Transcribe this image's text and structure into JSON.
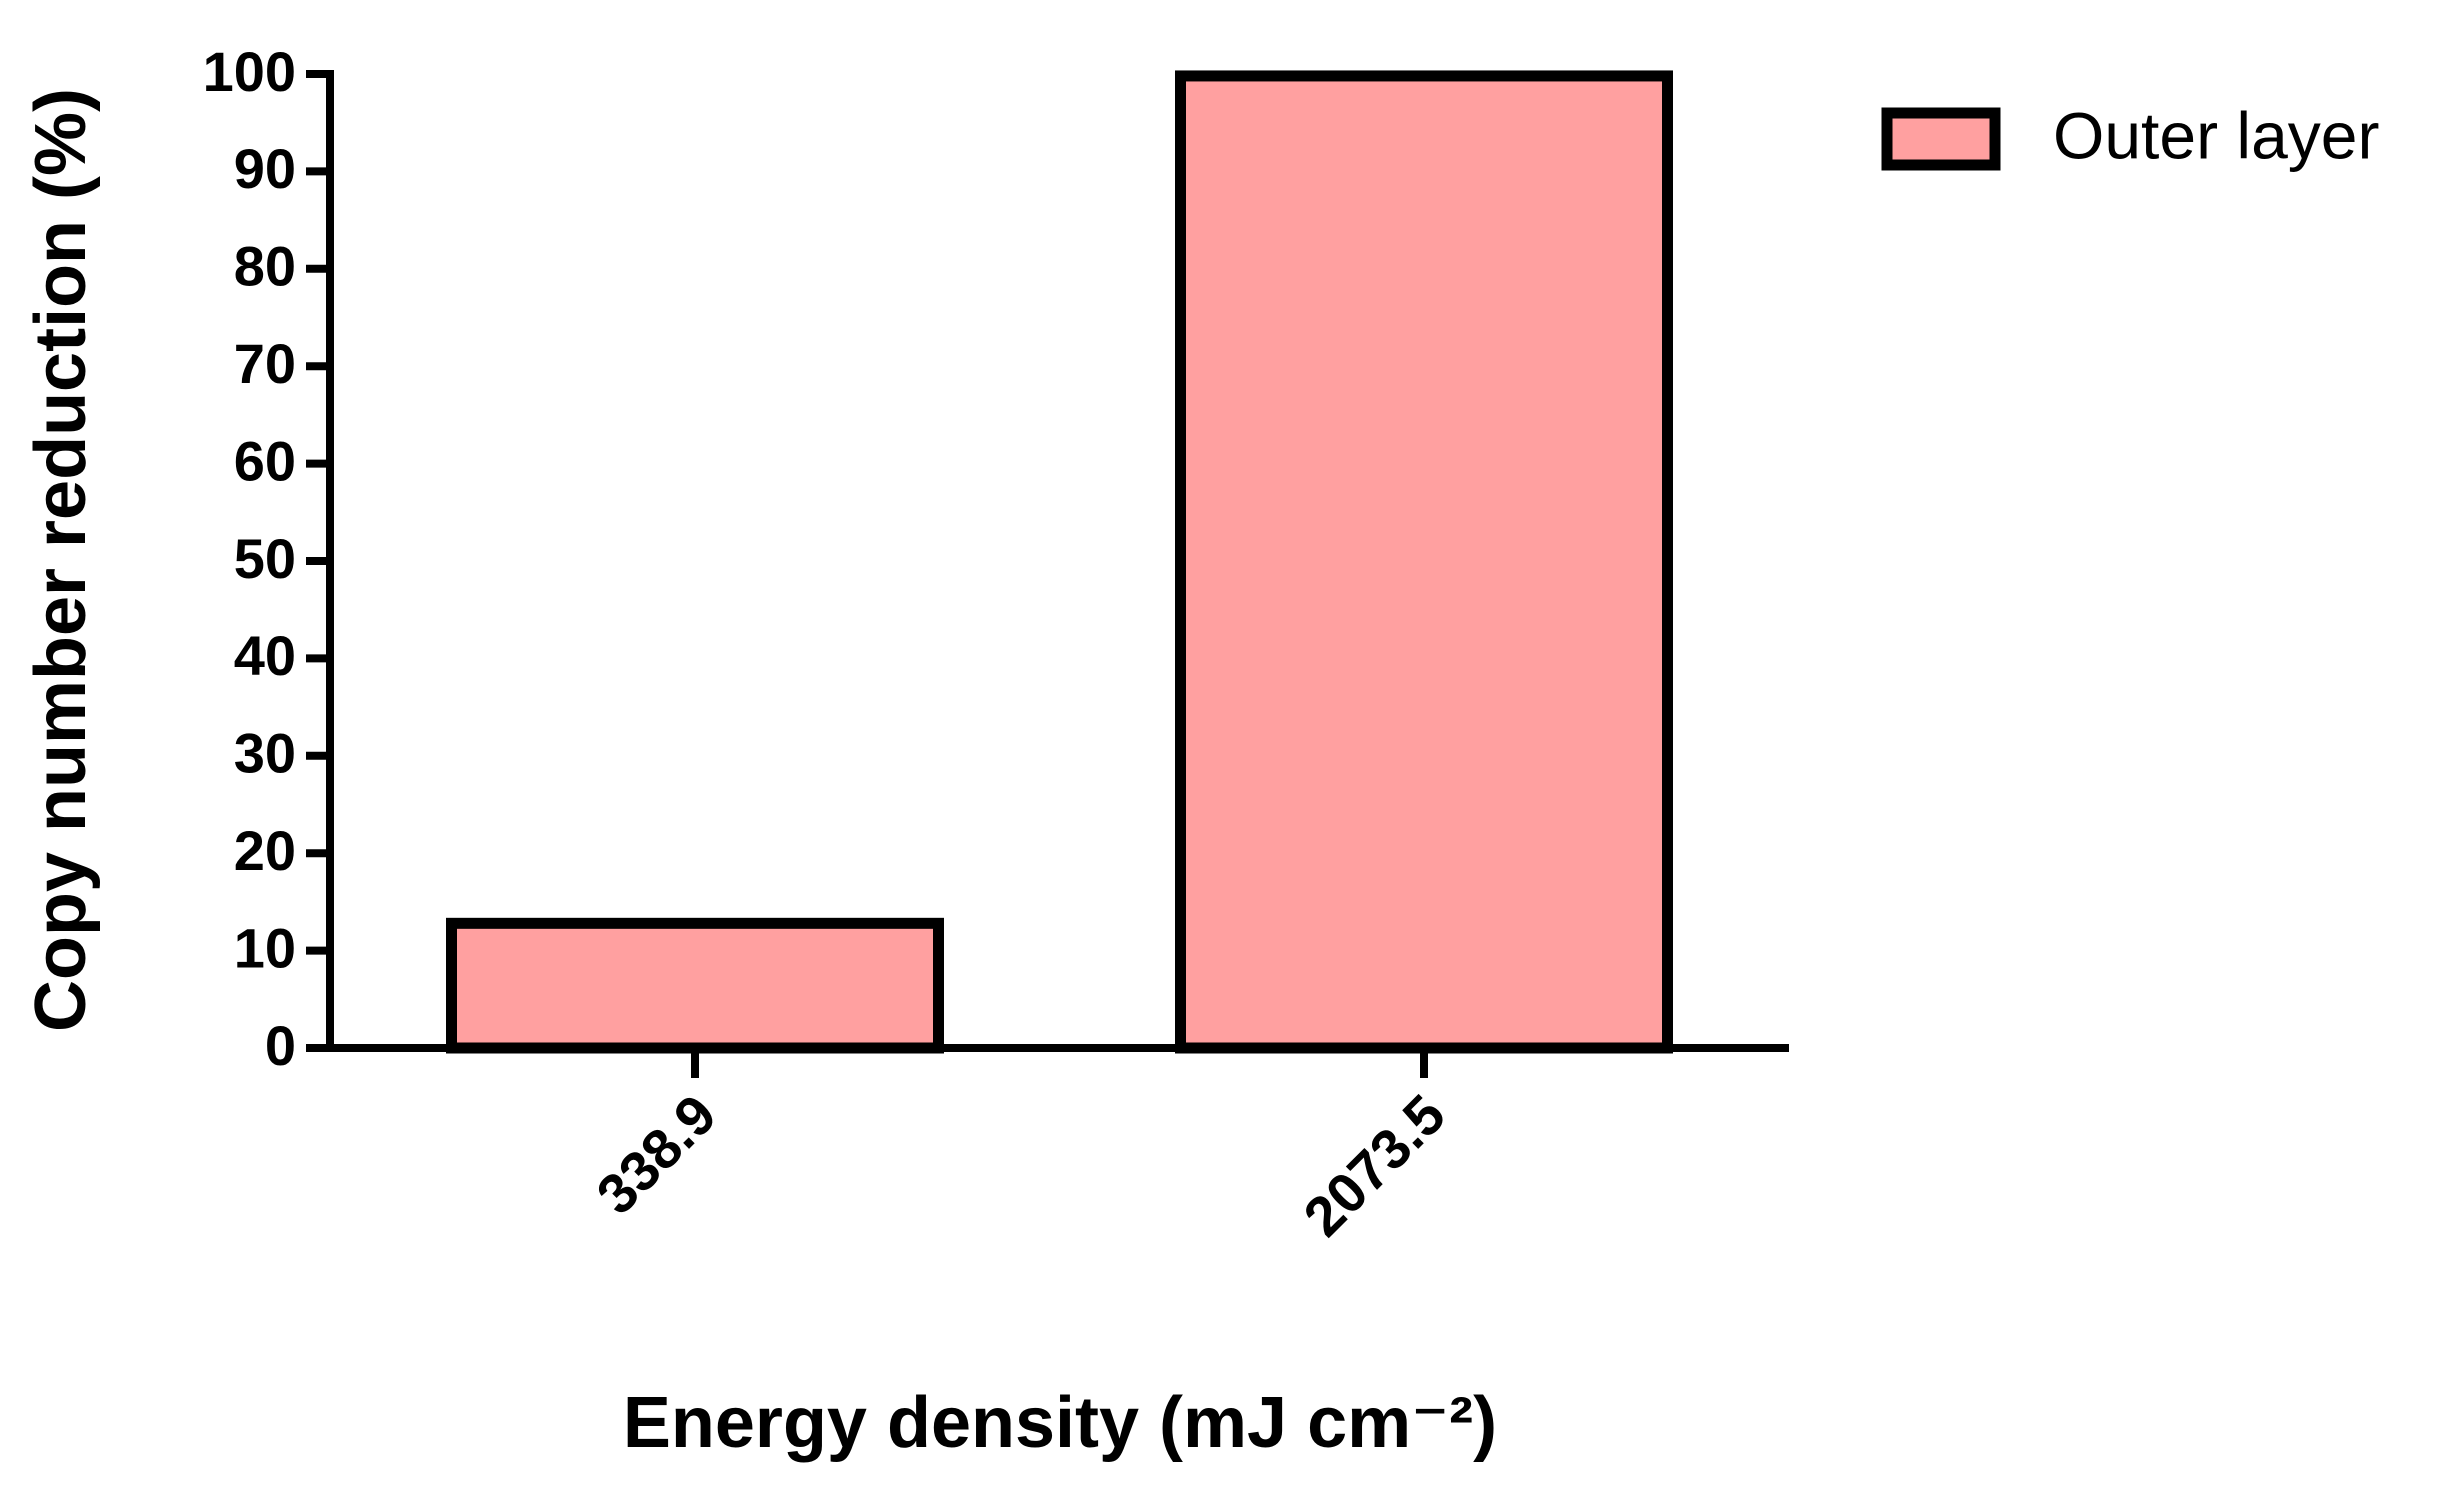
{
  "chart_data": {
    "type": "bar",
    "x_label": "Energy density (mJ cm⁻²)",
    "y_label": "Copy number reduction (%)",
    "categories": [
      "338.9",
      "2073.5"
    ],
    "series": [
      {
        "name": "Outer layer",
        "color": "#ffa0a0",
        "values": [
          12.8,
          99.8
        ]
      }
    ],
    "ylim": [
      0,
      100
    ],
    "yticks": [
      0,
      10,
      20,
      30,
      40,
      50,
      60,
      70,
      80,
      90,
      100
    ],
    "legend": "right"
  }
}
